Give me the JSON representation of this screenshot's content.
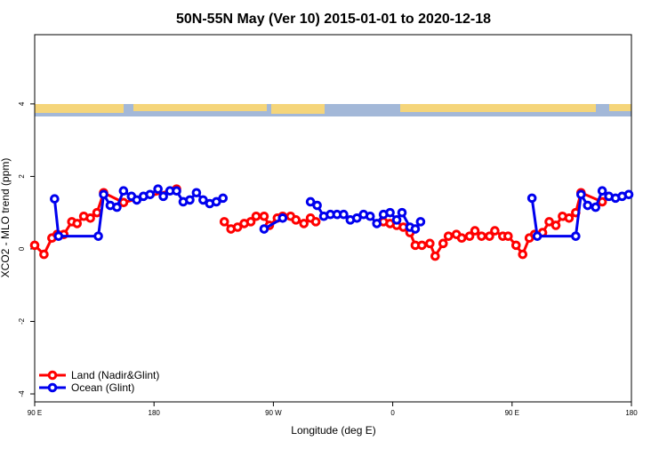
{
  "chart_data": {
    "type": "line",
    "title": "50N-55N May (Ver 10)   2015-01-01 to 2020-12-18",
    "xlabel": "Longitude (deg E)",
    "ylabel": "XCO2 - MLO trend (ppm)",
    "xlim": [
      90,
      540
    ],
    "ylim": [
      -4.22,
      5.91
    ],
    "xticks": [
      {
        "value": 90,
        "label": "90 E"
      },
      180,
      {
        "value": 270,
        "label": "90 W"
      },
      {
        "value": 360,
        "label": "0"
      },
      {
        "value": 450,
        "label": "90 E"
      },
      {
        "value": 540,
        "label": "180"
      }
    ],
    "yticks": [
      -4,
      -2,
      0,
      2,
      4
    ],
    "grid": false,
    "legend": "bottom-left",
    "series": [
      {
        "name": "Land (Nadir&Glint)",
        "color": "#ff0000",
        "x": [
          90,
          97,
          103,
          107,
          112,
          118,
          122,
          127,
          132,
          137,
          142,
          157,
          197,
          null,
          233,
          238,
          243,
          248,
          253,
          257,
          263,
          267,
          273,
          277,
          283,
          287,
          293,
          298,
          302,
          null,
          353,
          358,
          363,
          368,
          373,
          377,
          382,
          388,
          392,
          398,
          402,
          408,
          412,
          418,
          422,
          427,
          433,
          437,
          443,
          447,
          453,
          458,
          463,
          467,
          473,
          478,
          483,
          488,
          493,
          498,
          502,
          518
        ],
        "values": [
          0.1,
          -0.15,
          0.3,
          0.4,
          0.4,
          0.75,
          0.7,
          0.9,
          0.85,
          1.0,
          1.55,
          1.28,
          1.65,
          null,
          0.75,
          0.55,
          0.6,
          0.7,
          0.75,
          0.9,
          0.9,
          0.65,
          0.85,
          0.9,
          0.9,
          0.8,
          0.7,
          0.85,
          0.75,
          null,
          0.75,
          0.7,
          0.65,
          0.6,
          0.45,
          0.1,
          0.1,
          0.15,
          -0.2,
          0.15,
          0.35,
          0.4,
          0.3,
          0.35,
          0.5,
          0.35,
          0.35,
          0.5,
          0.35,
          0.35,
          0.1,
          -0.15,
          0.3,
          0.4,
          0.45,
          0.75,
          0.65,
          0.9,
          0.85,
          1.0,
          1.55,
          1.3
        ]
      },
      {
        "name": "Ocean (Glint)",
        "color": "#0000ee",
        "x": [
          105,
          108,
          138,
          142,
          147,
          152,
          157,
          163,
          167,
          172,
          177,
          183,
          187,
          192,
          197,
          202,
          207,
          212,
          217,
          222,
          227,
          232,
          null,
          263,
          277,
          null,
          298,
          303,
          308,
          313,
          318,
          323,
          328,
          333,
          338,
          343,
          348,
          353,
          358,
          363,
          367,
          373,
          377,
          381,
          null,
          465,
          469,
          498,
          502,
          507,
          513,
          518,
          523,
          528,
          533,
          538
        ],
        "values": [
          1.38,
          0.35,
          0.35,
          1.5,
          1.2,
          1.15,
          1.6,
          1.45,
          1.35,
          1.45,
          1.5,
          1.65,
          1.45,
          1.6,
          1.6,
          1.3,
          1.35,
          1.55,
          1.35,
          1.25,
          1.3,
          1.4,
          null,
          0.55,
          0.85,
          null,
          1.3,
          1.2,
          0.9,
          0.95,
          0.95,
          0.95,
          0.8,
          0.85,
          0.95,
          0.9,
          0.7,
          0.95,
          1.0,
          0.8,
          1.0,
          0.6,
          0.55,
          0.75,
          null,
          1.4,
          0.35,
          0.35,
          1.5,
          1.2,
          1.15,
          1.6,
          1.45,
          1.4,
          1.45,
          1.5
        ]
      }
    ]
  }
}
